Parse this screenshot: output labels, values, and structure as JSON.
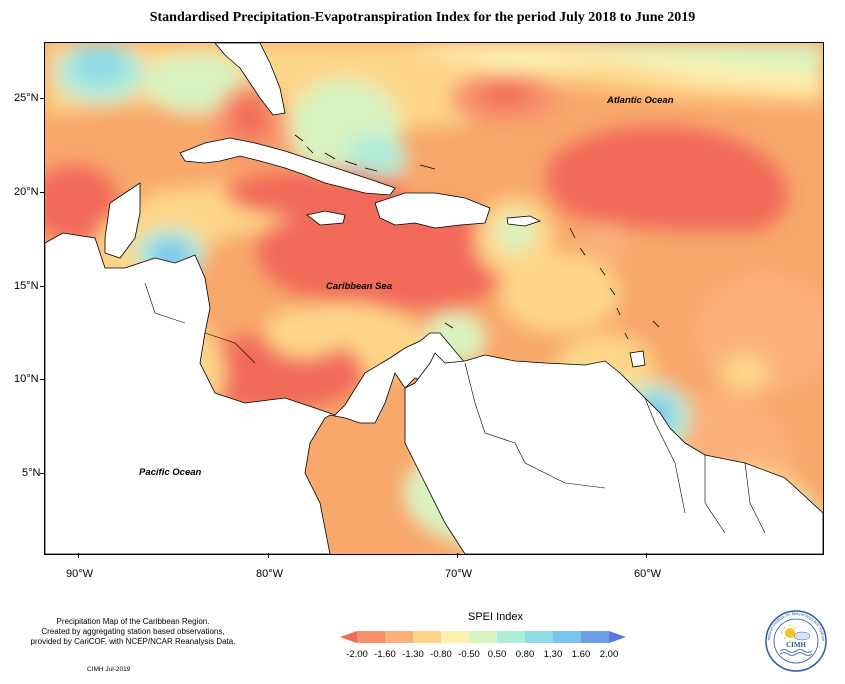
{
  "title": "Standardised Precipitation-Evapotranspiration Index for the period July 2018 to June 2019",
  "map": {
    "latitude_labels": [
      "25°N",
      "20°N",
      "15°N",
      "10°N",
      "5°N"
    ],
    "longitude_labels": [
      "90°W",
      "80°W",
      "70°W",
      "60°W"
    ],
    "ocean_labels": {
      "atlantic": "Atlantic Ocean",
      "caribbean": "Caribbean Sea",
      "pacific": "Pacific Ocean"
    }
  },
  "credits": {
    "line1": "Precipitation Map of the Caribbean Region.",
    "line2": "Created by aggregating station based observations,",
    "line3": "provided by CariCOF, with NCEP/NCAR Reanalysis Data.",
    "date": "CIMH Jul-2019"
  },
  "legend": {
    "title": "SPEI Index",
    "ticks": [
      "-2.00",
      "-1.60",
      "-1.30",
      "-0.80",
      "-0.50",
      "0.50",
      "0.80",
      "1.30",
      "1.60",
      "2.00"
    ],
    "colors": [
      "#f26a5a",
      "#f7906a",
      "#fbb07a",
      "#fdd589",
      "#fdf0b0",
      "#d9f3c0",
      "#b0ecd6",
      "#8fdce8",
      "#78c4ef",
      "#6e9ee6",
      "#5a78e0"
    ]
  },
  "logo": {
    "text": "CIMH",
    "ring_text": "Caribbean Institute for Meteorology and Hydrology"
  }
}
